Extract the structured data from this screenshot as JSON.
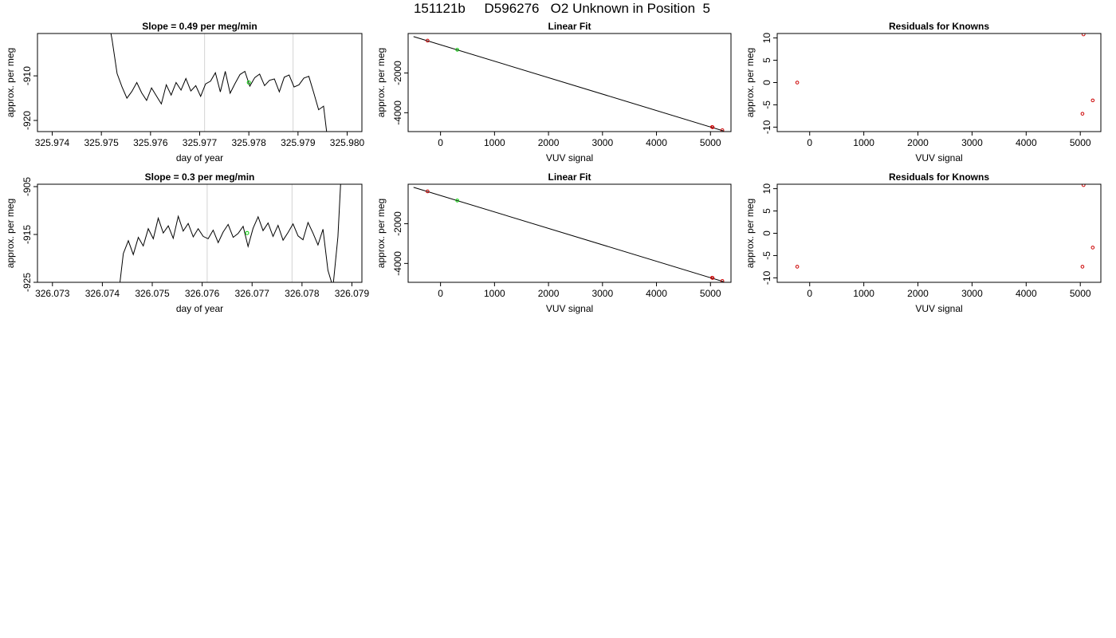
{
  "page": {
    "title": "151121b     D596276   O2 Unknown in Position  5"
  },
  "chart_data": [
    {
      "type": "line",
      "title": "Slope =  0.49  per meg/min",
      "xlabel": "day of year",
      "ylabel": "approx. per meg",
      "xlim": [
        325.9737,
        325.9803
      ],
      "ylim": [
        -922.5,
        -900.5
      ],
      "x_ticks": [
        325.974,
        325.975,
        325.976,
        325.977,
        325.978,
        325.979,
        325.98
      ],
      "x_tick_labels": [
        "325.974",
        "325.975",
        "325.976",
        "325.977",
        "325.978",
        "325.979",
        "325.980"
      ],
      "y_ticks": [
        -920,
        -910
      ],
      "y_tick_labels": [
        "-920",
        "-910"
      ],
      "grid": false,
      "vlines": [
        325.9771,
        325.9789
      ],
      "line_color": "#000000",
      "vline_color": "#d3d3d3",
      "marker_color": "#00cc00",
      "marker": {
        "x": 325.978,
        "y": -911.5
      },
      "series": [
        {
          "x": [
            325.97512,
            325.97522,
            325.97532,
            325.97542,
            325.97552,
            325.97562,
            325.97572,
            325.97582,
            325.97592,
            325.97602,
            325.97612,
            325.97622,
            325.97632,
            325.97642,
            325.97652,
            325.97662,
            325.97672,
            325.97682,
            325.97692,
            325.97702,
            325.97712,
            325.97722,
            325.97732,
            325.97742,
            325.97752,
            325.97762,
            325.97772,
            325.97782,
            325.97792,
            325.97802,
            325.97812,
            325.97822,
            325.97832,
            325.97842,
            325.97852,
            325.97862,
            325.97872,
            325.97882,
            325.97892,
            325.97902,
            325.97912,
            325.97922,
            325.97932,
            325.97942,
            325.97952,
            325.97962
          ],
          "y": [
            -896,
            -902,
            -909.5,
            -912.5,
            -915,
            -913.5,
            -911.5,
            -913.8,
            -915.5,
            -912.7,
            -914.5,
            -916.3,
            -912,
            -914.3,
            -911.5,
            -913.2,
            -910.6,
            -913.4,
            -912.2,
            -914.6,
            -911.8,
            -911.2,
            -909.3,
            -913.6,
            -909,
            -913.9,
            -911.7,
            -909.7,
            -909,
            -912.3,
            -910.4,
            -909.6,
            -912.2,
            -911,
            -910.7,
            -913.6,
            -910.3,
            -909.8,
            -912.5,
            -912,
            -910.5,
            -910.1,
            -913.8,
            -917.6,
            -916.8,
            -926
          ]
        }
      ]
    },
    {
      "type": "scatter",
      "title": "Linear Fit",
      "xlabel": "VUV signal",
      "ylabel": "approx. per meg",
      "xlim": [
        -600,
        5380
      ],
      "ylim": [
        -4950,
        -10
      ],
      "x_ticks": [
        0,
        1000,
        2000,
        3000,
        4000,
        5000
      ],
      "x_tick_labels": [
        "0",
        "1000",
        "2000",
        "3000",
        "4000",
        "5000"
      ],
      "y_ticks": [
        -4000,
        -2000
      ],
      "y_tick_labels": [
        "-4000",
        "-2000"
      ],
      "grid": false,
      "point_color": "#cc0000",
      "unknown_color": "#00cc00",
      "fit_line": {
        "x": [
          -500,
          5250
        ],
        "y": [
          -165,
          -4925
        ]
      },
      "knowns": {
        "x": [
          -240,
          5030,
          5040,
          5220
        ],
        "y": [
          -370,
          -4720,
          -4730,
          -4880
        ]
      },
      "unknown": {
        "x": [
          310
        ],
        "y": [
          -830
        ]
      }
    },
    {
      "type": "scatter",
      "title": "Residuals for Knowns",
      "xlabel": "VUV signal",
      "ylabel": "approx. per meg",
      "xlim": [
        -600,
        5380
      ],
      "ylim": [
        -11,
        11
      ],
      "x_ticks": [
        0,
        1000,
        2000,
        3000,
        4000,
        5000
      ],
      "x_tick_labels": [
        "0",
        "1000",
        "2000",
        "3000",
        "4000",
        "5000"
      ],
      "y_ticks": [
        -10,
        -5,
        0,
        5,
        10
      ],
      "y_tick_labels": [
        "-10",
        "-5",
        "0",
        "5",
        "10"
      ],
      "grid": false,
      "point_color": "#cc0000",
      "points": {
        "x": [
          -230,
          5040,
          5060,
          5230
        ],
        "y": [
          0,
          -7,
          10.8,
          -4
        ]
      }
    },
    {
      "type": "line",
      "title": "Slope =  0.3  per meg/min",
      "xlabel": "day of year",
      "ylabel": "approx. per meg",
      "xlim": [
        326.0727,
        326.0792
      ],
      "ylim": [
        -925,
        -904.5
      ],
      "x_ticks": [
        326.073,
        326.074,
        326.075,
        326.076,
        326.077,
        326.078,
        326.079
      ],
      "x_tick_labels": [
        "326.073",
        "326.074",
        "326.075",
        "326.076",
        "326.077",
        "326.078",
        "326.079"
      ],
      "y_ticks": [
        -925,
        -915,
        -905
      ],
      "y_tick_labels": [
        "-925",
        "-915",
        "-905"
      ],
      "grid": false,
      "vlines": [
        326.0761,
        326.0778
      ],
      "line_color": "#000000",
      "vline_color": "#d3d3d3",
      "marker_color": "#00cc00",
      "marker": {
        "x": 326.0769,
        "y": -914.7
      },
      "series": [
        {
          "x": [
            326.07432,
            326.07442,
            326.07452,
            326.07462,
            326.07472,
            326.07482,
            326.07492,
            326.07502,
            326.07512,
            326.07522,
            326.07532,
            326.07542,
            326.07552,
            326.07562,
            326.07572,
            326.07582,
            326.07592,
            326.07602,
            326.07612,
            326.07622,
            326.07632,
            326.07642,
            326.07652,
            326.07662,
            326.07672,
            326.07682,
            326.07692,
            326.07702,
            326.07712,
            326.07722,
            326.07732,
            326.07742,
            326.07752,
            326.07762,
            326.07772,
            326.07782,
            326.07792,
            326.07802,
            326.07812,
            326.07822,
            326.07832,
            326.07842,
            326.07852,
            326.07862,
            326.07872,
            326.07882
          ],
          "y": [
            -928,
            -919,
            -916.3,
            -919.2,
            -915.6,
            -917.4,
            -913.8,
            -915.9,
            -911.6,
            -914.7,
            -913.2,
            -915.8,
            -911.2,
            -914.3,
            -912.7,
            -915.5,
            -913.8,
            -915.4,
            -915.9,
            -914.1,
            -916.7,
            -914.5,
            -912.9,
            -915.6,
            -914.8,
            -913.3,
            -917.5,
            -913.7,
            -911.3,
            -914.2,
            -912.6,
            -915.4,
            -913.1,
            -916.2,
            -914.6,
            -912.8,
            -915.3,
            -916.1,
            -912.5,
            -914.7,
            -917.2,
            -913.9,
            -922.5,
            -926,
            -915.5,
            -895
          ]
        }
      ]
    },
    {
      "type": "scatter",
      "title": "Linear Fit",
      "xlabel": "VUV signal",
      "ylabel": "approx. per meg",
      "xlim": [
        -600,
        5380
      ],
      "ylim": [
        -4950,
        -10
      ],
      "x_ticks": [
        0,
        1000,
        2000,
        3000,
        4000,
        5000
      ],
      "x_tick_labels": [
        "0",
        "1000",
        "2000",
        "3000",
        "4000",
        "5000"
      ],
      "y_ticks": [
        -4000,
        -2000
      ],
      "y_tick_labels": [
        "-4000",
        "-2000"
      ],
      "grid": false,
      "point_color": "#cc0000",
      "unknown_color": "#00cc00",
      "fit_line": {
        "x": [
          -500,
          5250
        ],
        "y": [
          -165,
          -4925
        ]
      },
      "knowns": {
        "x": [
          -240,
          5030,
          5040,
          5220
        ],
        "y": [
          -370,
          -4720,
          -4730,
          -4880
        ]
      },
      "unknown": {
        "x": [
          310
        ],
        "y": [
          -830
        ]
      }
    },
    {
      "type": "scatter",
      "title": "Residuals for Knowns",
      "xlabel": "VUV signal",
      "ylabel": "approx. per meg",
      "xlim": [
        -600,
        5380
      ],
      "ylim": [
        -11,
        11
      ],
      "x_ticks": [
        0,
        1000,
        2000,
        3000,
        4000,
        5000
      ],
      "x_tick_labels": [
        "0",
        "1000",
        "2000",
        "3000",
        "4000",
        "5000"
      ],
      "y_ticks": [
        -10,
        -5,
        0,
        5,
        10
      ],
      "y_tick_labels": [
        "-10",
        "-5",
        "0",
        "5",
        "10"
      ],
      "grid": false,
      "point_color": "#cc0000",
      "points": {
        "x": [
          -230,
          5040,
          5060,
          5230
        ],
        "y": [
          -7.5,
          -7.5,
          10.8,
          -3.2
        ]
      }
    }
  ]
}
